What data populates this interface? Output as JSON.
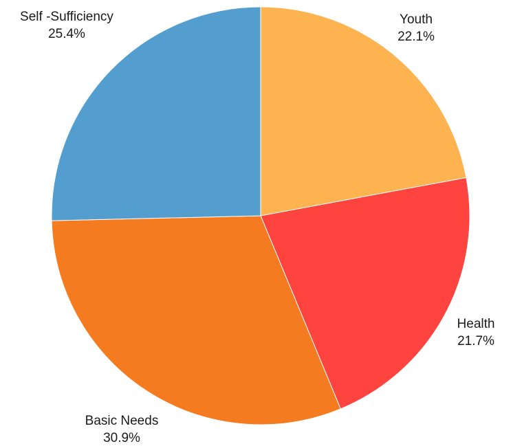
{
  "chart_data": {
    "type": "pie",
    "title": "",
    "start_angle_deg": 0,
    "direction": "clockwise",
    "slices": [
      {
        "label": "Youth",
        "percent_label": "22.1%",
        "value": 22.1,
        "color": "#FDB350"
      },
      {
        "label": "Health",
        "percent_label": "21.7%",
        "value": 21.7,
        "color": "#FF433F"
      },
      {
        "label": "Basic Needs",
        "percent_label": "30.9%",
        "value": 30.9,
        "color": "#F47B20"
      },
      {
        "label": "Self -Sufficiency",
        "percent_label": "25.4%",
        "value": 25.4,
        "color": "#539ECE"
      }
    ],
    "legend": "none"
  }
}
